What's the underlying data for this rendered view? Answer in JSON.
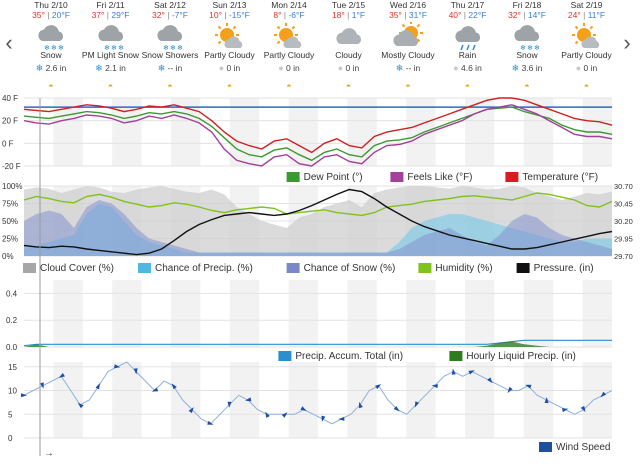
{
  "nav": {
    "prev_glyph": "‹",
    "next_glyph": "›"
  },
  "days": [
    {
      "date": "Thu 2/10",
      "high": "35°",
      "low": "20°F",
      "condition": "Snow",
      "icon": "snow-icon",
      "precip_symbol": "❄",
      "precip_text": "2.6 in"
    },
    {
      "date": "Fri 2/11",
      "high": "37°",
      "low": "29°F",
      "condition": "PM Light Snow",
      "icon": "snow-icon",
      "precip_symbol": "❄",
      "precip_text": "2.1 in"
    },
    {
      "date": "Sat 2/12",
      "high": "32°",
      "low": "-7°F",
      "condition": "Snow Showers",
      "icon": "snow-icon",
      "precip_symbol": "❄",
      "precip_text": "-- in"
    },
    {
      "date": "Sun 2/13",
      "high": "10°",
      "low": "-15°F",
      "condition": "Partly Cloudy",
      "icon": "partly-cloudy-icon",
      "precip_symbol": "●",
      "precip_text": "0 in"
    },
    {
      "date": "Mon 2/14",
      "high": "8°",
      "low": "-6°F",
      "condition": "Partly Cloudy",
      "icon": "partly-cloudy-icon",
      "precip_symbol": "●",
      "precip_text": "0 in"
    },
    {
      "date": "Tue 2/15",
      "high": "18°",
      "low": "1°F",
      "condition": "Cloudy",
      "icon": "cloudy-icon",
      "precip_symbol": "●",
      "precip_text": "0 in"
    },
    {
      "date": "Wed 2/16",
      "high": "35°",
      "low": "31°F",
      "condition": "Mostly Cloudy",
      "icon": "mostly-cloudy-icon",
      "precip_symbol": "❄",
      "precip_text": "-- in"
    },
    {
      "date": "Thu 2/17",
      "high": "40°",
      "low": "22°F",
      "condition": "Rain",
      "icon": "rain-icon",
      "precip_symbol": "●",
      "precip_text": "4.6 in"
    },
    {
      "date": "Fri 2/18",
      "high": "32°",
      "low": "14°F",
      "condition": "Snow",
      "icon": "snow-icon",
      "precip_symbol": "❄",
      "precip_text": "3.6 in"
    },
    {
      "date": "Sat 2/19",
      "high": "24°",
      "low": "11°F",
      "condition": "Partly Cloudy",
      "icon": "partly-cloudy-icon",
      "precip_symbol": "●",
      "precip_text": "0 in"
    }
  ],
  "chart_data": [
    {
      "type": "line",
      "yticks": [
        "40 F",
        "20 F",
        "0 F",
        "-20 F"
      ],
      "ylim": [
        -20,
        40
      ],
      "freeze_line": 32,
      "series": [
        {
          "name": "Dew Point (°)",
          "color": "#3a9a2f",
          "values": [
            24,
            23,
            22,
            24,
            26,
            28,
            27,
            25,
            22,
            24,
            27,
            26,
            28,
            26,
            22,
            15,
            5,
            -5,
            -10,
            -12,
            -6,
            -4,
            -10,
            -15,
            -8,
            -5,
            -10,
            -12,
            -2,
            2,
            3,
            5,
            10,
            14,
            18,
            22,
            26,
            30,
            31,
            32,
            28,
            25,
            22,
            16,
            12,
            10,
            10,
            8
          ]
        },
        {
          "name": "Feels Like (°F)",
          "color": "#a43f9a",
          "values": [
            20,
            18,
            17,
            20,
            22,
            25,
            24,
            22,
            18,
            20,
            24,
            22,
            25,
            22,
            18,
            10,
            -5,
            -15,
            -18,
            -20,
            -12,
            -10,
            -18,
            -22,
            -12,
            -10,
            -16,
            -18,
            -8,
            -2,
            -1,
            2,
            8,
            12,
            16,
            20,
            26,
            30,
            32,
            34,
            30,
            26,
            20,
            14,
            8,
            6,
            6,
            4
          ]
        },
        {
          "name": "Temperature (°F)",
          "color": "#d11f22",
          "values": [
            30,
            29,
            28,
            30,
            32,
            34,
            33,
            31,
            28,
            30,
            33,
            32,
            34,
            31,
            28,
            20,
            10,
            2,
            -2,
            -5,
            2,
            4,
            -2,
            -8,
            0,
            4,
            -2,
            -4,
            6,
            10,
            12,
            14,
            18,
            22,
            26,
            30,
            34,
            38,
            40,
            42,
            38,
            34,
            30,
            26,
            22,
            20,
            19,
            16
          ]
        }
      ]
    },
    {
      "type": "line",
      "yticks_left": [
        "100%",
        "75%",
        "50%",
        "25%",
        "0%"
      ],
      "yticks_right": [
        "30.70",
        "30.45",
        "30.20",
        "29.95",
        "29.70"
      ],
      "y2lim": [
        29.7,
        30.7
      ],
      "series": [
        {
          "name": "Cloud Cover (%)",
          "color": "#a6a6a6",
          "values": [
            95,
            98,
            96,
            90,
            95,
            100,
            98,
            92,
            90,
            95,
            98,
            100,
            96,
            92,
            90,
            95,
            88,
            70,
            60,
            50,
            45,
            40,
            55,
            60,
            70,
            75,
            80,
            70,
            90,
            95,
            98,
            100,
            100,
            98,
            96,
            100,
            98,
            95,
            96,
            100,
            98,
            90,
            85,
            80,
            85,
            90,
            88,
            92
          ]
        },
        {
          "name": "Chance of Precip. (%)",
          "color": "#4fb8e0",
          "values": [
            10,
            15,
            20,
            25,
            30,
            60,
            75,
            70,
            50,
            30,
            20,
            15,
            10,
            5,
            5,
            5,
            5,
            5,
            5,
            5,
            5,
            5,
            5,
            5,
            5,
            5,
            5,
            5,
            5,
            5,
            20,
            40,
            50,
            55,
            60,
            60,
            55,
            50,
            45,
            40,
            35,
            30,
            25,
            20,
            20,
            25,
            25,
            25
          ]
        },
        {
          "name": "Chance of Snow (%)",
          "color": "#7a88c8",
          "values": [
            50,
            60,
            65,
            60,
            40,
            70,
            80,
            75,
            60,
            40,
            25,
            20,
            15,
            10,
            5,
            5,
            5,
            5,
            5,
            5,
            5,
            5,
            5,
            5,
            5,
            5,
            5,
            5,
            5,
            5,
            10,
            20,
            30,
            35,
            40,
            30,
            20,
            15,
            30,
            50,
            60,
            55,
            40,
            30,
            25,
            20,
            15,
            10
          ]
        },
        {
          "name": "Humidity (%)",
          "color": "#7fc31c",
          "values": [
            80,
            85,
            82,
            78,
            76,
            85,
            88,
            84,
            78,
            74,
            70,
            72,
            76,
            74,
            70,
            65,
            62,
            66,
            68,
            70,
            68,
            60,
            62,
            64,
            66,
            62,
            60,
            58,
            62,
            70,
            72,
            74,
            78,
            80,
            82,
            85,
            86,
            84,
            82,
            80,
            85,
            90,
            88,
            84,
            80,
            72,
            70,
            78
          ]
        },
        {
          "name": "Pressure. (in)",
          "color": "#111111",
          "values": [
            29.85,
            29.83,
            29.82,
            29.84,
            29.83,
            29.8,
            29.78,
            29.76,
            29.74,
            29.72,
            29.74,
            29.8,
            29.92,
            30.05,
            30.15,
            30.22,
            30.28,
            30.3,
            30.32,
            30.3,
            30.28,
            30.3,
            30.35,
            30.42,
            30.5,
            30.58,
            30.65,
            30.62,
            30.52,
            30.4,
            30.3,
            30.2,
            30.12,
            30.06,
            30.0,
            29.96,
            29.92,
            29.88,
            29.84,
            29.8,
            29.8,
            29.82,
            29.86,
            29.9,
            29.94,
            29.98,
            30.02,
            30.05
          ]
        }
      ]
    },
    {
      "type": "line",
      "yticks": [
        "0.4",
        "0.2",
        "0.0"
      ],
      "ylim": [
        0,
        0.5
      ],
      "series": [
        {
          "name": "Precip. Accum. Total (in)",
          "color": "#2a8fcf",
          "values": [
            0.01,
            0.02,
            0.02,
            0.02,
            0.02,
            0.02,
            0.02,
            0.02,
            0.02,
            0.02,
            0.02,
            0.02,
            0.02,
            0.02,
            0.02,
            0.02,
            0.02,
            0.02,
            0.02,
            0.02,
            0.02,
            0.02,
            0.02,
            0.02,
            0.02,
            0.02,
            0.02,
            0.02,
            0.02,
            0.02,
            0.02,
            0.02,
            0.02,
            0.02,
            0.02,
            0.02,
            0.02,
            0.02,
            0.03,
            0.04,
            0.05,
            0.05,
            0.05,
            0.05,
            0.05,
            0.05,
            0.05,
            0.05
          ]
        },
        {
          "name": "Hourly Liquid Precip. (in)",
          "color": "#2b7d1e",
          "values": [
            0,
            0.02,
            0,
            0,
            0,
            0,
            0,
            0,
            0,
            0,
            0,
            0,
            0,
            0,
            0,
            0,
            0,
            0,
            0,
            0,
            0,
            0,
            0,
            0,
            0,
            0,
            0,
            0,
            0,
            0,
            0,
            0,
            0,
            0,
            0,
            0,
            0,
            0.01,
            0.03,
            0.04,
            0.02,
            0.01,
            0,
            0,
            0,
            0,
            0,
            0
          ]
        }
      ]
    },
    {
      "type": "line",
      "yticks": [
        "15",
        "10",
        "5",
        "0"
      ],
      "ylim": [
        0,
        16
      ],
      "series": [
        {
          "name": "Wind Speed",
          "color": "#1d4fa3",
          "values": [
            9,
            10,
            11,
            12,
            13,
            10,
            7,
            8,
            11,
            14,
            15,
            16,
            14,
            12,
            10,
            12,
            11,
            8,
            6,
            4,
            3,
            5,
            7,
            9,
            8,
            6,
            5,
            5,
            5,
            5,
            6,
            5,
            4,
            3,
            4,
            5,
            7,
            10,
            11,
            8,
            6,
            5,
            7,
            9,
            11,
            13,
            14,
            13,
            14,
            13,
            12,
            11,
            10,
            10,
            11,
            9,
            8,
            7,
            6,
            5,
            6,
            8,
            9,
            10
          ]
        }
      ]
    }
  ],
  "forward_arrow": "→"
}
